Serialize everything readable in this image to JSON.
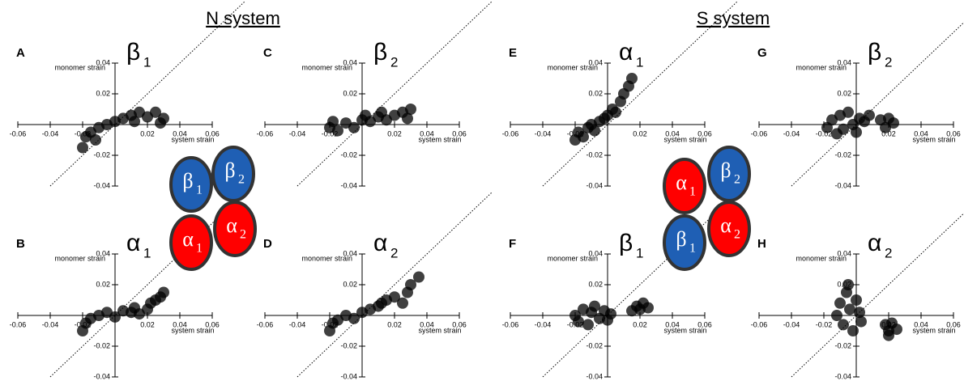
{
  "titles": [
    "N system",
    "S system"
  ],
  "diagrams": [
    {
      "nodes": [
        {
          "label": "β",
          "sub": "1",
          "color": "#1f5fb4"
        },
        {
          "label": "β",
          "sub": "2",
          "color": "#1f5fb4"
        },
        {
          "label": "α",
          "sub": "1",
          "color": "#ff0000"
        },
        {
          "label": "α",
          "sub": "2",
          "color": "#ff0000"
        }
      ]
    },
    {
      "nodes": [
        {
          "label": "α",
          "sub": "1",
          "color": "#ff0000"
        },
        {
          "label": "β",
          "sub": "2",
          "color": "#1f5fb4"
        },
        {
          "label": "β",
          "sub": "1",
          "color": "#1f5fb4"
        },
        {
          "label": "α",
          "sub": "2",
          "color": "#ff0000"
        }
      ]
    }
  ],
  "chart_data": [
    {
      "type": "scatter",
      "panel": "A",
      "subunit": "β",
      "subunit_index": "1",
      "xlabel": "system strain",
      "ylabel": "monomer strain",
      "color": "#000000",
      "xlim": [
        -0.06,
        0.06
      ],
      "ylim": [
        -0.04,
        0.04
      ],
      "xticks": [
        -0.06,
        -0.04,
        -0.02,
        0.02,
        0.04,
        0.06
      ],
      "yticks": [
        -0.04,
        -0.02,
        0.02,
        0.04
      ],
      "x": [
        -0.02,
        -0.018,
        -0.015,
        -0.012,
        -0.01,
        -0.005,
        0,
        0.005,
        0.01,
        0.012,
        0.015,
        0.02,
        0.025,
        0.028,
        0.03
      ],
      "y": [
        -0.015,
        -0.008,
        -0.005,
        -0.01,
        -0.002,
        0,
        0.002,
        0.004,
        0.006,
        0.002,
        0.008,
        0.005,
        0.008,
        0.001,
        0.004
      ]
    },
    {
      "type": "scatter",
      "panel": "B",
      "subunit": "α",
      "subunit_index": "1",
      "xlabel": "system strain",
      "ylabel": "monomer strain",
      "color": "#000000",
      "xlim": [
        -0.06,
        0.06
      ],
      "ylim": [
        -0.04,
        0.04
      ],
      "xticks": [
        -0.06,
        -0.04,
        -0.02,
        0.02,
        0.04,
        0.06
      ],
      "yticks": [
        -0.04,
        -0.02,
        0.02,
        0.04
      ],
      "x": [
        -0.02,
        -0.018,
        -0.015,
        -0.01,
        -0.005,
        0,
        0.005,
        0.01,
        0.012,
        0.015,
        0.02,
        0.022,
        0.025,
        0.028,
        0.03
      ],
      "y": [
        -0.01,
        -0.005,
        -0.002,
        0,
        0.002,
        -0.001,
        0.003,
        0.002,
        0.005,
        0.001,
        0.004,
        0.008,
        0.01,
        0.012,
        0.015
      ]
    },
    {
      "type": "scatter",
      "panel": "C",
      "subunit": "β",
      "subunit_index": "2",
      "xlabel": "system strain",
      "ylabel": "monomer strain",
      "color": "#000000",
      "xlim": [
        -0.06,
        0.06
      ],
      "ylim": [
        -0.04,
        0.04
      ],
      "xticks": [
        -0.06,
        -0.04,
        -0.02,
        0.02,
        0.04,
        0.06
      ],
      "yticks": [
        -0.04,
        -0.02,
        0.02,
        0.04
      ],
      "x": [
        -0.02,
        -0.018,
        -0.015,
        -0.01,
        -0.005,
        0,
        0.002,
        0.005,
        0.01,
        0.012,
        0.015,
        0.02,
        0.025,
        0.028,
        0.03
      ],
      "y": [
        -0.002,
        0.002,
        -0.004,
        0.001,
        -0.002,
        0.003,
        0.006,
        0.002,
        0.005,
        0.008,
        0.003,
        0.006,
        0.008,
        0.004,
        0.01
      ]
    },
    {
      "type": "scatter",
      "panel": "D",
      "subunit": "α",
      "subunit_index": "2",
      "xlabel": "system strain",
      "ylabel": "monomer strain",
      "color": "#000000",
      "xlim": [
        -0.06,
        0.06
      ],
      "ylim": [
        -0.04,
        0.04
      ],
      "xticks": [
        -0.06,
        -0.04,
        -0.02,
        0.02,
        0.04,
        0.06
      ],
      "yticks": [
        -0.04,
        -0.02,
        0.02,
        0.04
      ],
      "x": [
        -0.02,
        -0.018,
        -0.015,
        -0.01,
        -0.005,
        0,
        0.005,
        0.01,
        0.012,
        0.015,
        0.02,
        0.025,
        0.028,
        0.03,
        0.035
      ],
      "y": [
        -0.01,
        -0.005,
        -0.003,
        0,
        -0.002,
        0.002,
        0.004,
        0.006,
        0.008,
        0.01,
        0.012,
        0.008,
        0.015,
        0.02,
        0.025
      ]
    },
    {
      "type": "scatter",
      "panel": "E",
      "subunit": "α",
      "subunit_index": "1",
      "xlabel": "system strain",
      "ylabel": "monomer strain",
      "color": "#000000",
      "xlim": [
        -0.06,
        0.06
      ],
      "ylim": [
        -0.04,
        0.04
      ],
      "xticks": [
        -0.06,
        -0.04,
        -0.02,
        0.02,
        0.04,
        0.06
      ],
      "yticks": [
        -0.04,
        -0.02,
        0.02,
        0.04
      ],
      "x": [
        -0.02,
        -0.018,
        -0.015,
        -0.012,
        -0.01,
        -0.008,
        -0.005,
        -0.002,
        0,
        0.003,
        0.005,
        0.008,
        0.01,
        0.013,
        0.015
      ],
      "y": [
        -0.01,
        -0.005,
        -0.008,
        -0.002,
        0,
        -0.004,
        0.002,
        0.004,
        0.006,
        0.01,
        0.008,
        0.015,
        0.02,
        0.025,
        0.03
      ]
    },
    {
      "type": "scatter",
      "panel": "F",
      "subunit": "β",
      "subunit_index": "1",
      "xlabel": "system strain",
      "ylabel": "monomer strain",
      "color": "#000000",
      "xlim": [
        -0.06,
        0.06
      ],
      "ylim": [
        -0.04,
        0.04
      ],
      "xticks": [
        -0.06,
        -0.04,
        -0.02,
        0.02,
        0.04,
        0.06
      ],
      "yticks": [
        -0.04,
        -0.02,
        0.02,
        0.04
      ],
      "x": [
        -0.02,
        -0.018,
        -0.015,
        -0.012,
        -0.01,
        -0.008,
        -0.005,
        -0.002,
        0,
        0.002,
        0.015,
        0.018,
        0.02,
        0.022,
        0.025
      ],
      "y": [
        0,
        -0.004,
        0.004,
        -0.006,
        0.002,
        0.006,
        -0.002,
        0.003,
        -0.003,
        0.001,
        0.003,
        0.006,
        0.004,
        0.008,
        0.005
      ]
    },
    {
      "type": "scatter",
      "panel": "G",
      "subunit": "β",
      "subunit_index": "2",
      "xlabel": "system strain",
      "ylabel": "monomer strain",
      "color": "#000000",
      "xlim": [
        -0.06,
        0.06
      ],
      "ylim": [
        -0.04,
        0.04
      ],
      "xticks": [
        -0.06,
        -0.04,
        -0.02,
        0.02,
        0.04,
        0.06
      ],
      "yticks": [
        -0.04,
        -0.02,
        0.02,
        0.04
      ],
      "x": [
        -0.018,
        -0.015,
        -0.012,
        -0.01,
        -0.008,
        -0.005,
        -0.002,
        0,
        0.002,
        0.005,
        0.008,
        0.015,
        0.018,
        0.02,
        0.023
      ],
      "y": [
        -0.002,
        0.003,
        -0.006,
        0.006,
        -0.003,
        0.008,
        0,
        -0.005,
        0.004,
        0.002,
        0.006,
        0.003,
        -0.002,
        0.004,
        0.001
      ]
    },
    {
      "type": "scatter",
      "panel": "H",
      "subunit": "α",
      "subunit_index": "2",
      "xlabel": "system strain",
      "ylabel": "monomer strain",
      "color": "#000000",
      "xlim": [
        -0.06,
        0.06
      ],
      "ylim": [
        -0.04,
        0.04
      ],
      "xticks": [
        -0.06,
        -0.04,
        -0.02,
        0.02,
        0.04,
        0.06
      ],
      "yticks": [
        -0.04,
        -0.02,
        0.02,
        0.04
      ],
      "x": [
        -0.012,
        -0.01,
        -0.008,
        -0.006,
        -0.004,
        -0.002,
        0,
        0.002,
        -0.005,
        0.003,
        0.018,
        0.02,
        0.022,
        0.025,
        0.02
      ],
      "y": [
        0,
        0.008,
        -0.006,
        0.015,
        0.004,
        -0.01,
        0.01,
        0.002,
        0.02,
        -0.004,
        -0.006,
        -0.01,
        -0.005,
        -0.009,
        -0.013
      ]
    }
  ]
}
